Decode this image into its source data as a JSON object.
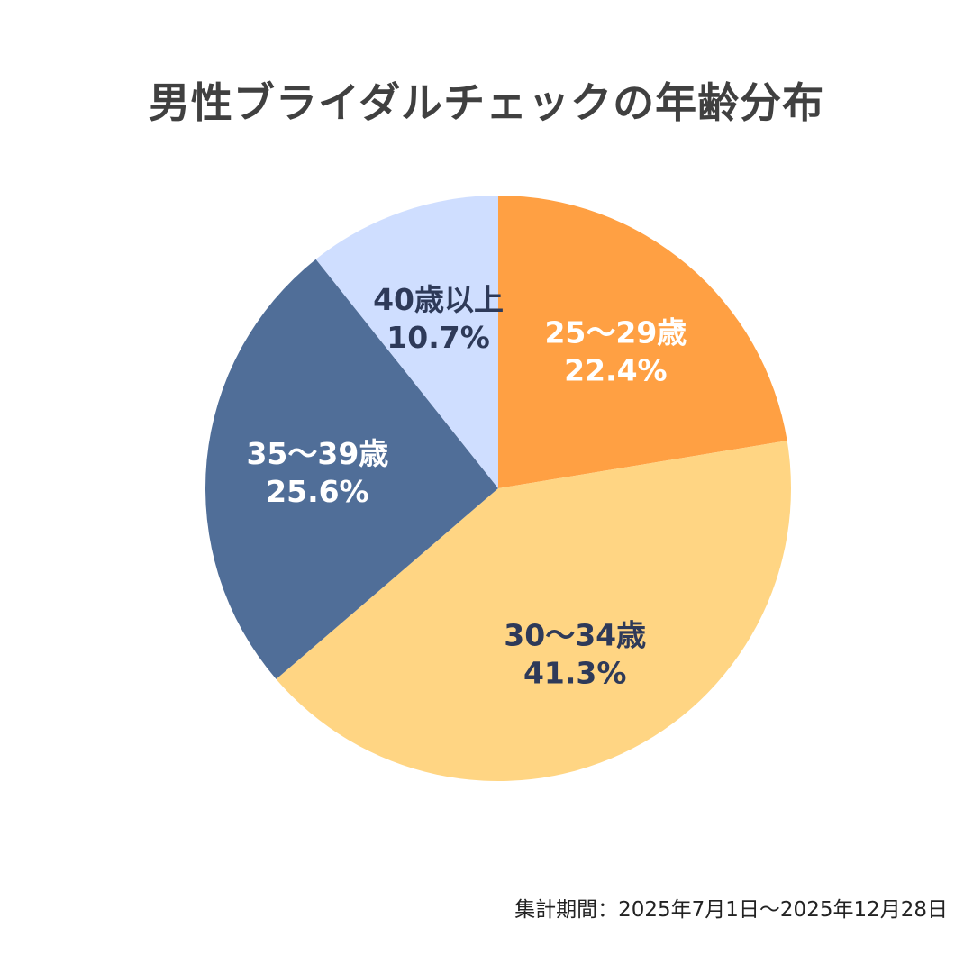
{
  "chart_data": {
    "type": "pie",
    "title": "男性ブライダルチェックの年齢分布",
    "start_angle_deg": 0,
    "direction": "clockwise",
    "slices": [
      {
        "label": "25〜29歳",
        "value": 22.4,
        "value_label": "22.4%",
        "color": "#FFA043",
        "label_color": "#FFFFFF"
      },
      {
        "label": "30〜34歳",
        "value": 41.3,
        "value_label": "41.3%",
        "color": "#FFD583",
        "label_color": "#2E3A59"
      },
      {
        "label": "35〜39歳",
        "value": 25.6,
        "value_label": "25.6%",
        "color": "#506E98",
        "label_color": "#FFFFFF"
      },
      {
        "label": "40歳以上",
        "value": 10.7,
        "value_label": "10.7%",
        "color": "#CFDEFF",
        "label_color": "#2E3A59"
      }
    ]
  },
  "footnote": "集計期間：2025年7月1日〜2025年12月28日"
}
